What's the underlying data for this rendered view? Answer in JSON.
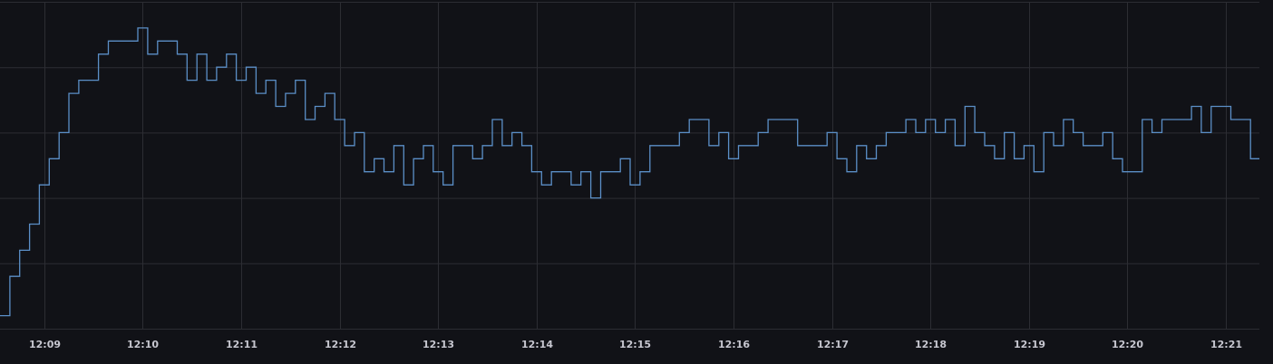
{
  "chart_data": {
    "type": "line",
    "step": true,
    "x": [
      8.55,
      8.65,
      8.75,
      8.85,
      8.95,
      9.05,
      9.15,
      9.25,
      9.35,
      9.45,
      9.55,
      9.65,
      9.75,
      9.85,
      9.95,
      10.05,
      10.15,
      10.25,
      10.35,
      10.45,
      10.55,
      10.65,
      10.75,
      10.85,
      10.95,
      11.05,
      11.15,
      11.25,
      11.35,
      11.45,
      11.55,
      11.65,
      11.75,
      11.85,
      11.95,
      12.05,
      12.15,
      12.25,
      12.35,
      12.45,
      12.55,
      12.65,
      12.75,
      12.85,
      12.95,
      13.05,
      13.15,
      13.25,
      13.35,
      13.45,
      13.55,
      13.65,
      13.75,
      13.85,
      13.95,
      14.05,
      14.15,
      14.25,
      14.35,
      14.45,
      14.55,
      14.65,
      14.75,
      14.85,
      14.95,
      15.05,
      15.15,
      15.25,
      15.35,
      15.45,
      15.55,
      15.65,
      15.75,
      15.85,
      15.95,
      16.05,
      16.15,
      16.25,
      16.35,
      16.45,
      16.55,
      16.65,
      16.75,
      16.85,
      16.95,
      17.05,
      17.15,
      17.25,
      17.35,
      17.45,
      17.55,
      17.65,
      17.75,
      17.85,
      17.95,
      18.05,
      18.15,
      18.25,
      18.35,
      18.45,
      18.55,
      18.65,
      18.75,
      18.85,
      18.95,
      19.05,
      19.15,
      19.25,
      19.35,
      19.45,
      19.55,
      19.65,
      19.75,
      19.85,
      19.95,
      20.05,
      20.15,
      20.25,
      20.35,
      20.45,
      20.55,
      20.65,
      20.75,
      20.85,
      20.95,
      21.05,
      21.15,
      21.25
    ],
    "series": [
      {
        "color": "#5b8fc7",
        "values": [
          0.2,
          0.8,
          1.2,
          1.6,
          2.2,
          2.6,
          3.0,
          3.6,
          3.8,
          3.8,
          4.2,
          4.4,
          4.4,
          4.4,
          4.6,
          4.2,
          4.4,
          4.4,
          4.2,
          3.8,
          4.2,
          3.8,
          4.0,
          4.2,
          3.8,
          4.0,
          3.6,
          3.8,
          3.4,
          3.6,
          3.8,
          3.2,
          3.4,
          3.6,
          3.2,
          2.8,
          3.0,
          2.4,
          2.6,
          2.4,
          2.8,
          2.2,
          2.6,
          2.8,
          2.4,
          2.2,
          2.8,
          2.8,
          2.6,
          2.8,
          3.2,
          2.8,
          3.0,
          2.8,
          2.4,
          2.2,
          2.4,
          2.4,
          2.2,
          2.4,
          2.0,
          2.4,
          2.4,
          2.6,
          2.2,
          2.4,
          2.8,
          2.8,
          2.8,
          3.0,
          3.2,
          3.2,
          2.8,
          3.0,
          2.6,
          2.8,
          2.8,
          3.0,
          3.2,
          3.2,
          3.2,
          2.8,
          2.8,
          2.8,
          3.0,
          2.6,
          2.4,
          2.8,
          2.6,
          2.8,
          3.0,
          3.0,
          3.2,
          3.0,
          3.2,
          3.0,
          3.2,
          2.8,
          3.4,
          3.0,
          2.8,
          2.6,
          3.0,
          2.6,
          2.8,
          2.4,
          3.0,
          2.8,
          3.2,
          3.0,
          2.8,
          2.8,
          3.0,
          2.6,
          2.4,
          2.4,
          3.2,
          3.0,
          3.2,
          3.2,
          3.2,
          3.4,
          3.0,
          3.4,
          3.4,
          3.2,
          3.2,
          2.6
        ]
      }
    ],
    "xlim": [
      8.55,
      21.34
    ],
    "xticks": [
      {
        "value": 9,
        "label": "12:09"
      },
      {
        "value": 10,
        "label": "12:10"
      },
      {
        "value": 11,
        "label": "12:11"
      },
      {
        "value": 12,
        "label": "12:12"
      },
      {
        "value": 13,
        "label": "12:13"
      },
      {
        "value": 14,
        "label": "12:14"
      },
      {
        "value": 15,
        "label": "12:15"
      },
      {
        "value": 16,
        "label": "12:16"
      },
      {
        "value": 17,
        "label": "12:17"
      },
      {
        "value": 18,
        "label": "12:18"
      },
      {
        "value": 19,
        "label": "12:19"
      },
      {
        "value": 20,
        "label": "12:20"
      },
      {
        "value": 21,
        "label": "12:21"
      }
    ],
    "ylim": [
      0,
      5
    ],
    "yticks": [
      0,
      1,
      2,
      3,
      4,
      5
    ],
    "grid": true
  }
}
